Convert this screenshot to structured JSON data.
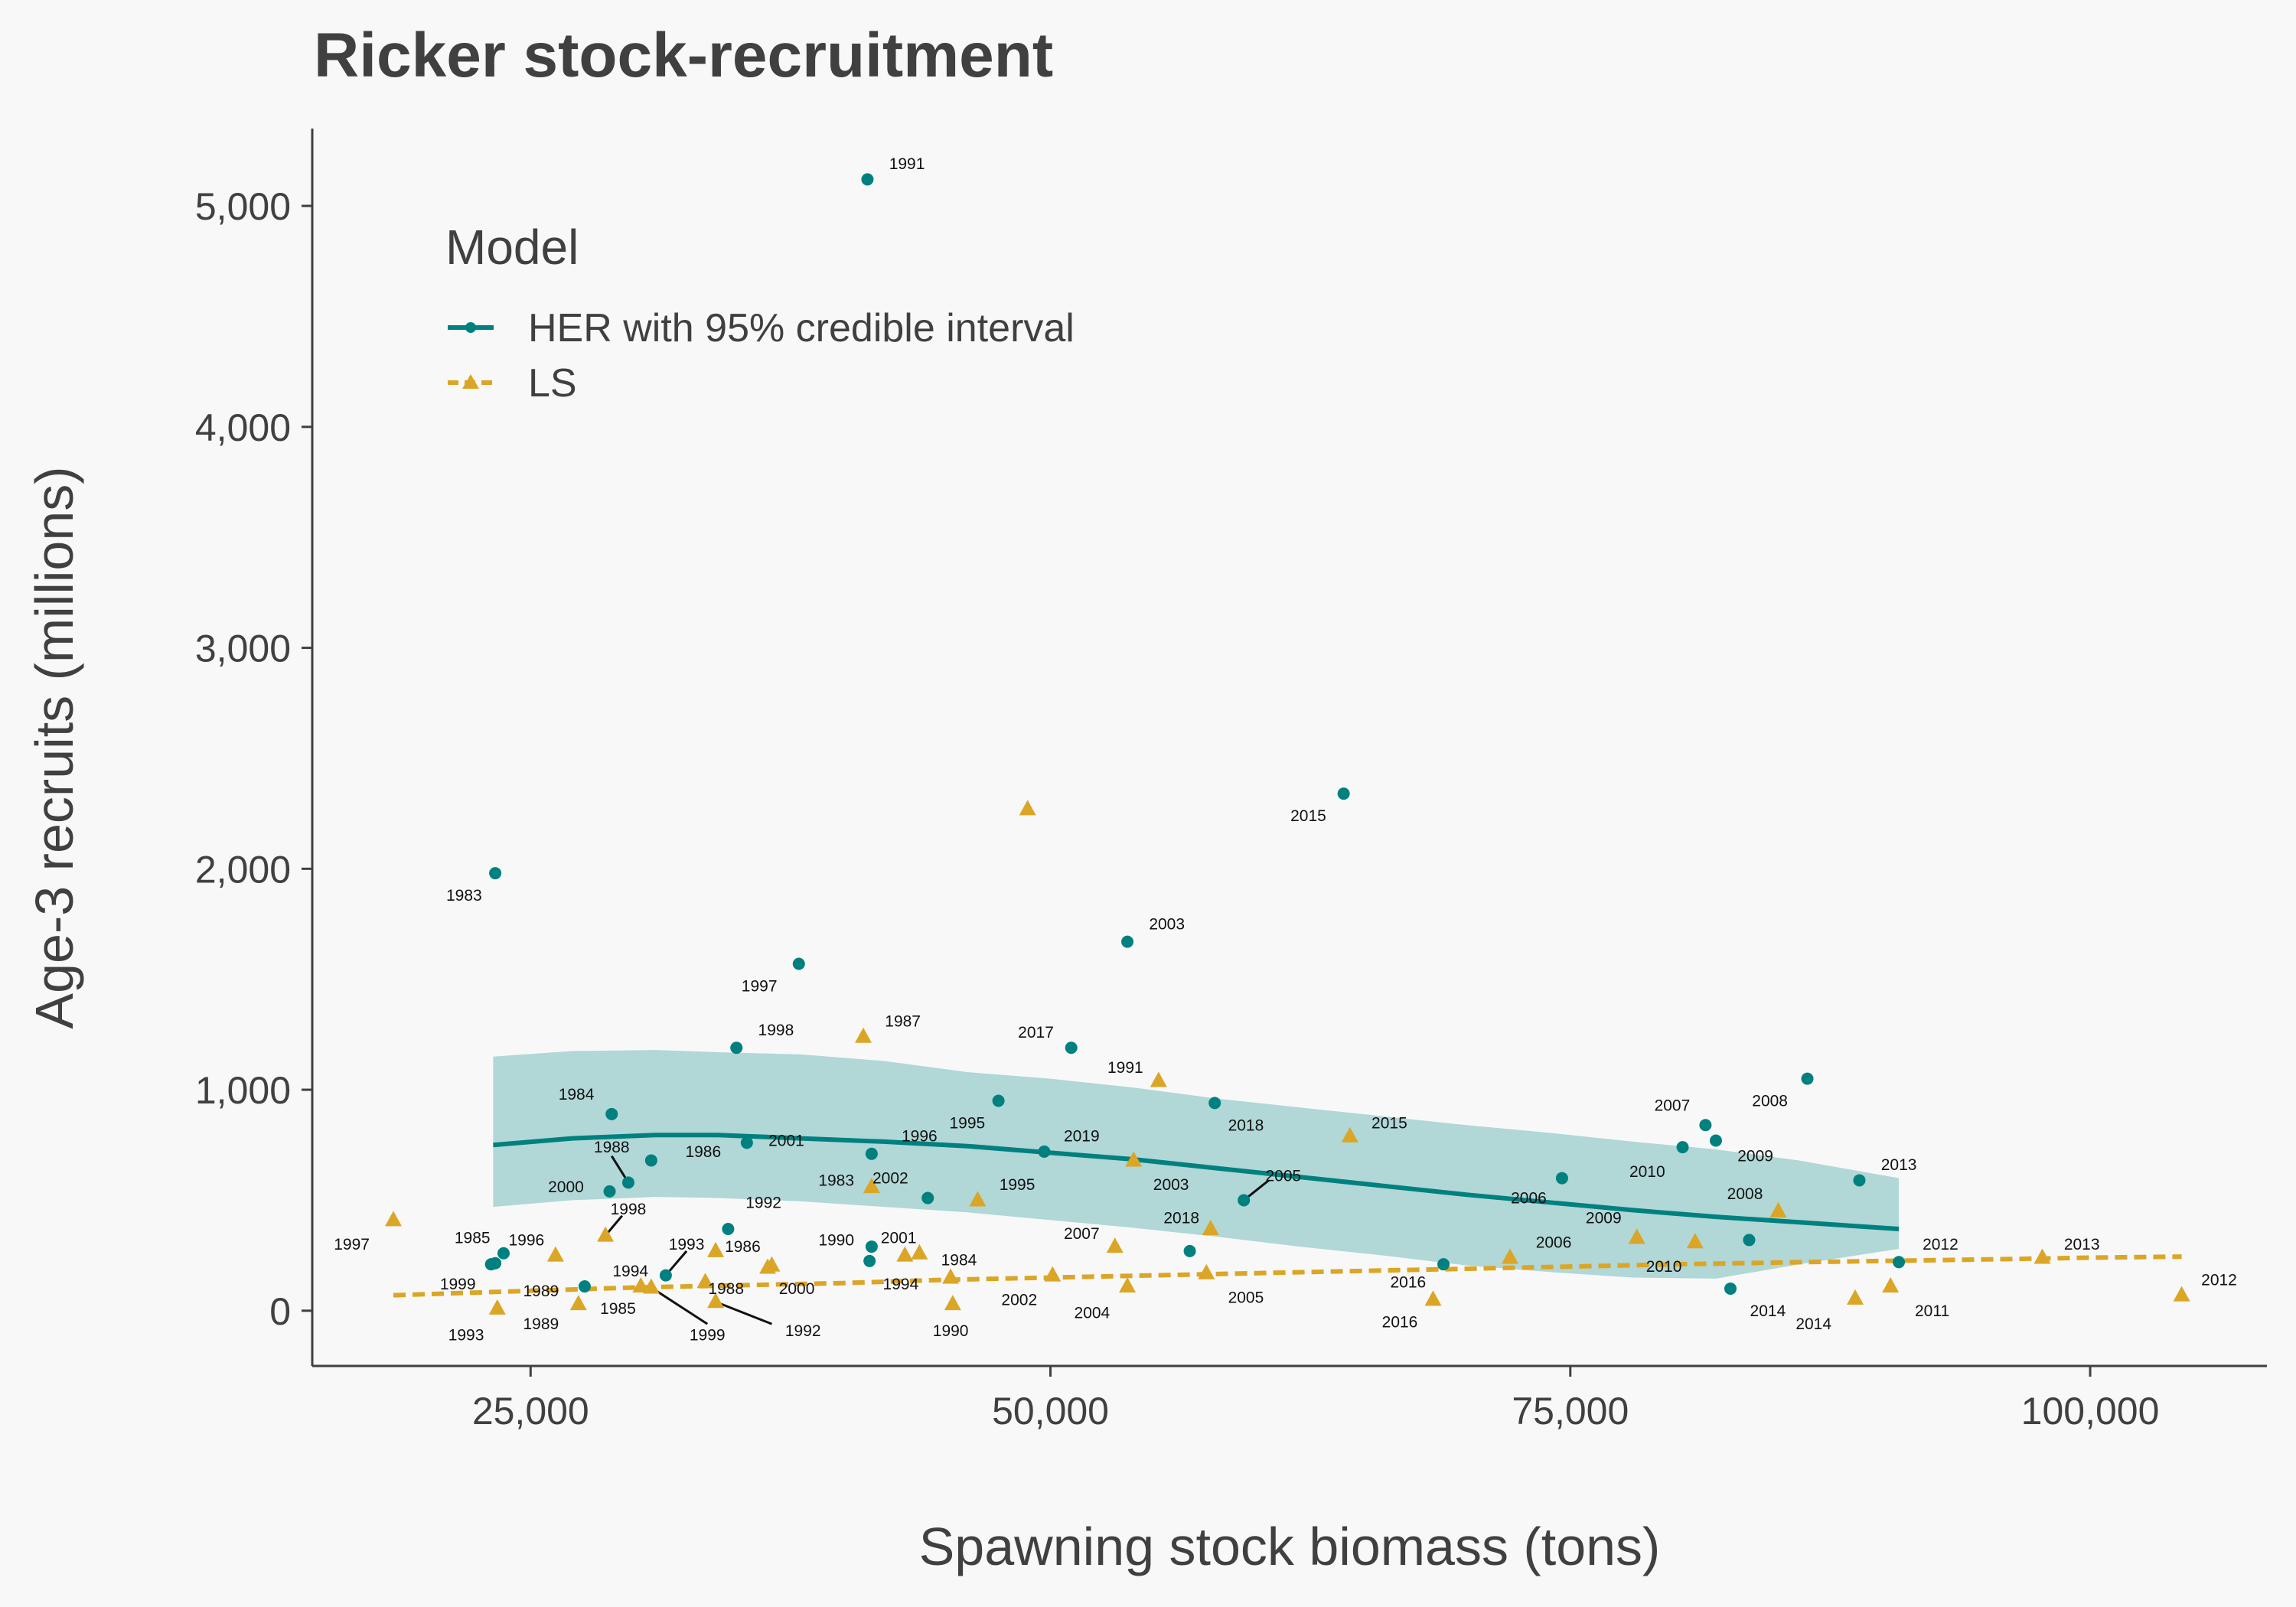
{
  "chart_data": {
    "type": "scatter",
    "title": "Ricker stock-recruitment",
    "xlabel": "Spawning stock biomass (tons)",
    "ylabel": "Age-3 recruits (millions)",
    "xlim": [
      14500,
      108500
    ],
    "ylim": [
      -250,
      5350
    ],
    "x_ticks": [
      25000,
      50000,
      75000,
      100000
    ],
    "x_tick_labels": [
      "25,000",
      "50,000",
      "75,000",
      "100,000"
    ],
    "y_ticks": [
      0,
      1000,
      2000,
      3000,
      4000,
      5000
    ],
    "y_tick_labels": [
      "0",
      "1,000",
      "2,000",
      "3,000",
      "4,000",
      "5,000"
    ],
    "grid": false,
    "legend": {
      "title": "Model",
      "position": "top-left",
      "entries": [
        "HER with 95% credible interval",
        "LS"
      ]
    },
    "colors": {
      "her": "#00807f",
      "band": "#a9d3d3",
      "ls": "#dba526"
    },
    "series": [
      {
        "name": "HER with 95% credible interval",
        "marker": "circle",
        "points": [
          {
            "label": "1983",
            "x": 23300,
            "y": 1980,
            "lx": 21800,
            "ly": 1880
          },
          {
            "label": "1984",
            "x": 28900,
            "y": 890,
            "lx": 27200,
            "ly": 980
          },
          {
            "label": "1985",
            "x": 23700,
            "y": 260,
            "lx": 22200,
            "ly": 330
          },
          {
            "label": "1986",
            "x": 30800,
            "y": 680,
            "lx": 33300,
            "ly": 720
          },
          {
            "label": "1987",
            "x": 23300,
            "y": 215,
            "lx": 0,
            "ly": 0,
            "nolabel": true
          },
          {
            "label": "1988",
            "x": 29700,
            "y": 580,
            "lx": 28900,
            "ly": 740
          },
          {
            "label": "1989",
            "x": 27600,
            "y": 110,
            "lx": 25500,
            "ly": 90
          },
          {
            "label": "1990",
            "x": 41400,
            "y": 290,
            "lx": 39700,
            "ly": 320
          },
          {
            "label": "1991",
            "x": 41200,
            "y": 5120,
            "lx": 43100,
            "ly": 5190
          },
          {
            "label": "1992",
            "x": 34500,
            "y": 370,
            "lx": 36200,
            "ly": 490
          },
          {
            "label": "1993",
            "x": 31500,
            "y": 160,
            "lx": 32500,
            "ly": 300
          },
          {
            "label": "1994",
            "x": 41300,
            "y": 225,
            "lx": 42800,
            "ly": 120
          },
          {
            "label": "1995",
            "x": 47500,
            "y": 950,
            "lx": 46000,
            "ly": 850
          },
          {
            "label": "1996",
            "x": 41400,
            "y": 710,
            "lx": 43700,
            "ly": 790
          },
          {
            "label": "1997",
            "x": 37900,
            "y": 1570,
            "lx": 36000,
            "ly": 1470
          },
          {
            "label": "1998",
            "x": 34900,
            "y": 1190,
            "lx": 36800,
            "ly": 1270
          },
          {
            "label": "1999",
            "x": 23100,
            "y": 210,
            "lx": 21500,
            "ly": 120
          },
          {
            "label": "2000",
            "x": 28800,
            "y": 540,
            "lx": 26700,
            "ly": 560
          },
          {
            "label": "2001",
            "x": 35400,
            "y": 760,
            "lx": 37300,
            "ly": 770
          },
          {
            "label": "2002",
            "x": 44100,
            "y": 510,
            "lx": 42300,
            "ly": 600
          },
          {
            "label": "2003",
            "x": 53700,
            "y": 1670,
            "lx": 55600,
            "ly": 1750
          },
          {
            "label": "2004",
            "x": 56700,
            "y": 270,
            "lx": 0,
            "ly": 0,
            "nolabel": true
          },
          {
            "label": "2005",
            "x": 59300,
            "y": 500,
            "lx": 61200,
            "ly": 610
          },
          {
            "label": "2006",
            "x": 74600,
            "y": 600,
            "lx": 73000,
            "ly": 510
          },
          {
            "label": "2007",
            "x": 81500,
            "y": 840,
            "lx": 79900,
            "ly": 930
          },
          {
            "label": "2008",
            "x": 86400,
            "y": 1050,
            "lx": 84600,
            "ly": 950
          },
          {
            "label": "2009",
            "x": 82000,
            "y": 770,
            "lx": 83900,
            "ly": 700
          },
          {
            "label": "2010",
            "x": 80400,
            "y": 740,
            "lx": 78700,
            "ly": 630
          },
          {
            "label": "2011",
            "x": 83600,
            "y": 320,
            "lx": 0,
            "ly": 0,
            "nolabel": true
          },
          {
            "label": "2012",
            "x": 90800,
            "y": 220,
            "lx": 92800,
            "ly": 300
          },
          {
            "label": "2013",
            "x": 88900,
            "y": 590,
            "lx": 90800,
            "ly": 660
          },
          {
            "label": "2014",
            "x": 82700,
            "y": 100,
            "lx": 84500,
            "ly": 0
          },
          {
            "label": "2015",
            "x": 64100,
            "y": 2340,
            "lx": 62400,
            "ly": 2240
          },
          {
            "label": "2016",
            "x": 68900,
            "y": 210,
            "lx": 67200,
            "ly": 130
          },
          {
            "label": "2017",
            "x": 51000,
            "y": 1190,
            "lx": 49300,
            "ly": 1260
          },
          {
            "label": "2018",
            "x": 57900,
            "y": 940,
            "lx": 59400,
            "ly": 840
          },
          {
            "label": "2019",
            "x": 49700,
            "y": 720,
            "lx": 51500,
            "ly": 790
          }
        ],
        "curve": {
          "x": [
            23200,
            27000,
            31000,
            34000,
            38000,
            42000,
            46000,
            50000,
            54000,
            58000,
            62000,
            66000,
            70000,
            74000,
            78000,
            82000,
            86000,
            90800
          ],
          "y": [
            750,
            780,
            795,
            795,
            780,
            765,
            745,
            715,
            685,
            645,
            605,
            565,
            525,
            490,
            455,
            425,
            400,
            370
          ],
          "lower": [
            470,
            500,
            515,
            510,
            495,
            470,
            445,
            410,
            375,
            335,
            290,
            250,
            205,
            175,
            150,
            145,
            210,
            280
          ],
          "upper": [
            1150,
            1175,
            1180,
            1170,
            1160,
            1130,
            1080,
            1050,
            1010,
            960,
            920,
            880,
            840,
            805,
            765,
            730,
            680,
            600
          ]
        }
      },
      {
        "name": "LS",
        "marker": "triangle",
        "points": [
          {
            "label": "1983",
            "x": 41400,
            "y": 560,
            "lx": 39700,
            "ly": 590
          },
          {
            "label": "1984",
            "x": 45200,
            "y": 150,
            "lx": 45600,
            "ly": 230
          },
          {
            "label": "1985",
            "x": 30800,
            "y": 105,
            "lx": 29200,
            "ly": 10
          },
          {
            "label": "1986",
            "x": 36600,
            "y": 205,
            "lx": 35200,
            "ly": 290
          },
          {
            "label": "1987",
            "x": 41000,
            "y": 1240,
            "lx": 42900,
            "ly": 1310
          },
          {
            "label": "1988",
            "x": 33400,
            "y": 130,
            "lx": 34400,
            "ly": 100
          },
          {
            "label": "1989",
            "x": 27300,
            "y": 30,
            "lx": 25500,
            "ly": -60
          },
          {
            "label": "1990",
            "x": 45300,
            "y": 30,
            "lx": 45200,
            "ly": -90
          },
          {
            "label": "1991",
            "x": 55200,
            "y": 1040,
            "lx": 53600,
            "ly": 1100
          },
          {
            "label": "1992",
            "x": 33900,
            "y": 270,
            "lx": 38100,
            "ly": -90
          },
          {
            "label": "1993",
            "x": 23400,
            "y": 10,
            "lx": 21900,
            "ly": -110
          },
          {
            "label": "1994",
            "x": 30300,
            "y": 110,
            "lx": 29800,
            "ly": 180
          },
          {
            "label": "1995",
            "x": 46500,
            "y": 500,
            "lx": 48400,
            "ly": 570
          },
          {
            "label": "1996",
            "x": 26200,
            "y": 250,
            "lx": 24800,
            "ly": 320
          },
          {
            "label": "1997",
            "x": 18400,
            "y": 410,
            "lx": 16400,
            "ly": 300
          },
          {
            "label": "1998",
            "x": 28600,
            "y": 340,
            "lx": 29700,
            "ly": 460
          },
          {
            "label": "1999",
            "x": 33900,
            "y": 40,
            "lx": 33500,
            "ly": -110
          },
          {
            "label": "2000",
            "x": 36400,
            "y": 195,
            "lx": 37800,
            "ly": 100
          },
          {
            "label": "2001",
            "x": 43700,
            "y": 260,
            "lx": 42700,
            "ly": 330
          },
          {
            "label": "2002",
            "x": 50100,
            "y": 160,
            "lx": 48500,
            "ly": 50
          },
          {
            "label": "2003",
            "x": 54000,
            "y": 680,
            "lx": 55800,
            "ly": 570
          },
          {
            "label": "2004",
            "x": 53700,
            "y": 110,
            "lx": 52000,
            "ly": -10
          },
          {
            "label": "2005",
            "x": 57500,
            "y": 170,
            "lx": 59400,
            "ly": 60
          },
          {
            "label": "2006",
            "x": 72100,
            "y": 240,
            "lx": 74200,
            "ly": 310
          },
          {
            "label": "2007",
            "x": 53100,
            "y": 290,
            "lx": 51500,
            "ly": 350
          },
          {
            "label": "2008",
            "x": 85000,
            "y": 450,
            "lx": 83400,
            "ly": 530
          },
          {
            "label": "2009",
            "x": 78200,
            "y": 330,
            "lx": 76600,
            "ly": 420
          },
          {
            "label": "2010",
            "x": 81000,
            "y": 310,
            "lx": 79500,
            "ly": 200
          },
          {
            "label": "2011",
            "x": 90400,
            "y": 110,
            "lx": 92400,
            "ly": 0
          },
          {
            "label": "2012",
            "x": 104400,
            "y": 70,
            "lx": 106200,
            "ly": 140
          },
          {
            "label": "2013",
            "x": 97700,
            "y": 240,
            "lx": 99600,
            "ly": 300
          },
          {
            "label": "2014",
            "x": 88700,
            "y": 55,
            "lx": 86700,
            "ly": -60
          },
          {
            "label": "2015",
            "x": 64400,
            "y": 790,
            "lx": 66300,
            "ly": 850
          },
          {
            "label": "2016",
            "x": 68400,
            "y": 50,
            "lx": 66800,
            "ly": -50
          },
          {
            "label": "2017",
            "x": 48900,
            "y": 2270,
            "lx": 0,
            "ly": 0,
            "nolabel": true
          },
          {
            "label": "2018",
            "x": 57700,
            "y": 370,
            "lx": 56300,
            "ly": 420
          },
          {
            "label": "2019",
            "x": 43000,
            "y": 250,
            "lx": 0,
            "ly": 0,
            "nolabel": true
          }
        ],
        "curve": {
          "x": [
            18400,
            25000,
            30000,
            35000,
            40000,
            45000,
            50000,
            55000,
            60000,
            65000,
            70000,
            75000,
            80000,
            85000,
            90000,
            95000,
            100000,
            104400
          ],
          "y": [
            70,
            90,
            105,
            115,
            125,
            140,
            150,
            160,
            170,
            180,
            190,
            200,
            210,
            218,
            225,
            232,
            240,
            245
          ]
        }
      }
    ],
    "label_leaders": [
      {
        "x1": 29700,
        "y1": 580,
        "x2": 28900,
        "y2": 700
      },
      {
        "x1": 31500,
        "y1": 160,
        "x2": 32500,
        "y2": 270
      },
      {
        "x1": 59300,
        "y1": 500,
        "x2": 60500,
        "y2": 590
      },
      {
        "x1": 28600,
        "y1": 340,
        "x2": 29400,
        "y2": 430
      },
      {
        "x1": 30800,
        "y1": 105,
        "x2": 33500,
        "y2": -60
      },
      {
        "x1": 33900,
        "y1": 40,
        "x2": 36600,
        "y2": -60
      }
    ]
  }
}
